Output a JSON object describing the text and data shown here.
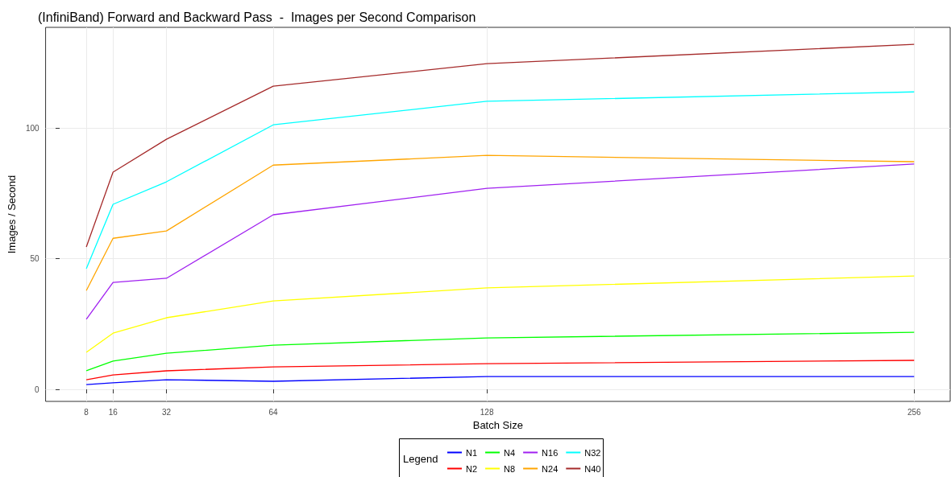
{
  "chart_data": {
    "type": "line",
    "title": "(InfiniBand) Forward and Backward Pass  -  Images per Second Comparison",
    "xlabel": "Batch Size",
    "ylabel": "Images / Second",
    "legend_title": "Legend",
    "legend": "bottom",
    "grid": true,
    "marker": "none",
    "line_style": "solid",
    "x": [
      8,
      16,
      32,
      64,
      128,
      256
    ],
    "xlim": [
      -4.2,
      266.8
    ],
    "xticks": [
      8,
      16,
      32,
      64,
      128,
      256
    ],
    "ylim": [
      -4.6,
      138.5
    ],
    "yticks": [
      0,
      50,
      100
    ],
    "series": [
      {
        "name": "N1",
        "color": "#0000ff",
        "values": [
          1.8,
          2.5,
          3.7,
          3.1,
          4.9,
          4.9
        ]
      },
      {
        "name": "N2",
        "color": "#ff0000",
        "values": [
          3.7,
          5.5,
          7.1,
          8.6,
          9.8,
          11.1
        ]
      },
      {
        "name": "N4",
        "color": "#00ff00",
        "values": [
          7.1,
          10.8,
          13.8,
          16.9,
          19.7,
          21.8
        ]
      },
      {
        "name": "N8",
        "color": "#ffff00",
        "values": [
          14.2,
          21.5,
          27.4,
          33.8,
          38.8,
          43.4
        ]
      },
      {
        "name": "N16",
        "color": "#a020f0",
        "values": [
          26.8,
          40.9,
          42.5,
          66.8,
          76.9,
          86.2
        ]
      },
      {
        "name": "N24",
        "color": "#ffa500",
        "values": [
          37.8,
          57.8,
          60.6,
          85.8,
          89.5,
          87.1
        ]
      },
      {
        "name": "N32",
        "color": "#00ffff",
        "values": [
          46.2,
          70.8,
          79.4,
          101.2,
          110.2,
          113.8
        ]
      },
      {
        "name": "N40",
        "color": "#a52a2a",
        "values": [
          54.5,
          83.1,
          95.7,
          116,
          124.6,
          132
        ]
      }
    ]
  }
}
